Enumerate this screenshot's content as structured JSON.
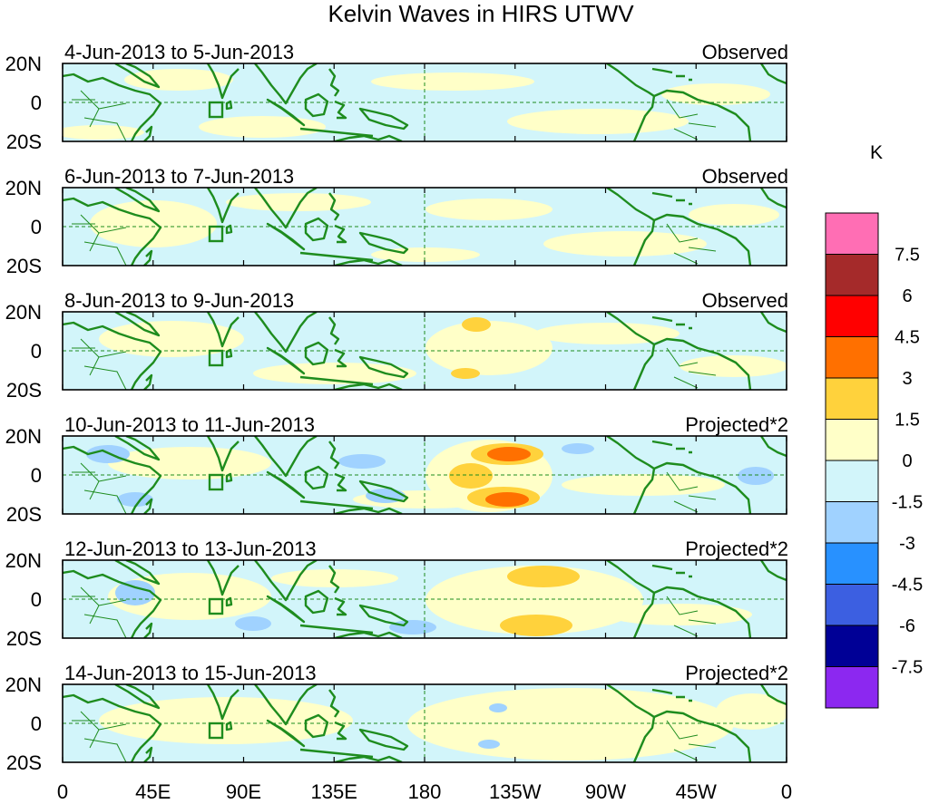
{
  "figure": {
    "title": "Kelvin Waves in HIRS UTWV",
    "units_label": "K"
  },
  "panels": [
    {
      "date_range": "4-Jun-2013 to 5-Jun-2013",
      "mode": "Observed"
    },
    {
      "date_range": "6-Jun-2013 to 7-Jun-2013",
      "mode": "Observed"
    },
    {
      "date_range": "8-Jun-2013 to 9-Jun-2013",
      "mode": "Observed"
    },
    {
      "date_range": "10-Jun-2013 to 11-Jun-2013",
      "mode": "Projected*2"
    },
    {
      "date_range": "12-Jun-2013 to 13-Jun-2013",
      "mode": "Projected*2"
    },
    {
      "date_range": "14-Jun-2013 to 15-Jun-2013",
      "mode": "Projected*2"
    }
  ],
  "lat_labels": [
    "20N",
    "0",
    "20S"
  ],
  "lon_labels": [
    "0",
    "45E",
    "90E",
    "135E",
    "180",
    "135W",
    "90W",
    "45W",
    "0"
  ],
  "colorbar": {
    "colors": [
      "#ff6eb4",
      "#a52a2a",
      "#ff0000",
      "#ff7000",
      "#ffd23c",
      "#ffffc8",
      "#d2f5fa",
      "#a0d2ff",
      "#2891ff",
      "#3c5fe1",
      "#000096",
      "#8c28f0"
    ],
    "labels": [
      "7.5",
      "6",
      "4.5",
      "3",
      "1.5",
      "0",
      "-1.5",
      "-3",
      "-4.5",
      "-6",
      "-7.5"
    ]
  },
  "colors": {
    "coast": "#1e8c1e",
    "frame": "#000000",
    "gridline": "#1e8c1e"
  }
}
